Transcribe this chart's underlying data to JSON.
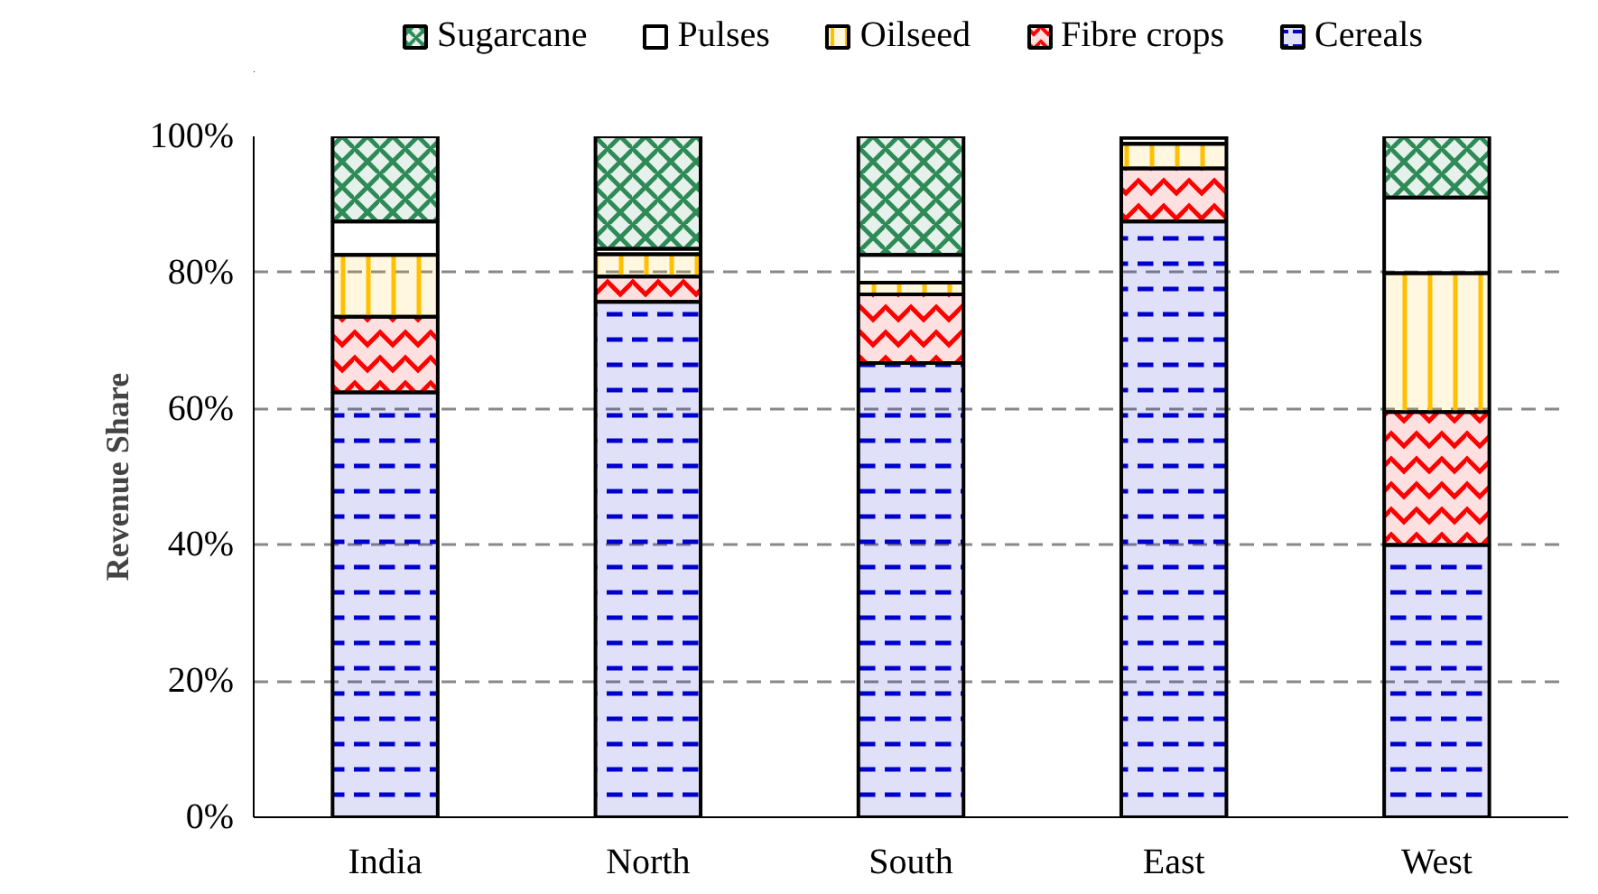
{
  "chart_data": {
    "type": "bar",
    "stacked": true,
    "ylabel": "Revenue Share",
    "categories": [
      "India",
      "North",
      "South",
      "East",
      "West"
    ],
    "series": [
      {
        "name": "Cereals",
        "color": "#0000cc",
        "values": [
          62.4,
          75.7,
          66.7,
          87.5,
          40.0
        ]
      },
      {
        "name": "Fibre crops",
        "color": "#ff0000",
        "values": [
          11.1,
          3.7,
          10.1,
          7.8,
          19.5
        ]
      },
      {
        "name": "Oilseed",
        "color": "#ffc000",
        "values": [
          9.1,
          3.3,
          1.7,
          3.6,
          20.4
        ]
      },
      {
        "name": "Pulses",
        "color": "#ffffff",
        "values": [
          4.9,
          0.8,
          4.1,
          0.9,
          11.1
        ]
      },
      {
        "name": "Sugarcane",
        "color": "#2e8b57",
        "values": [
          12.5,
          16.5,
          17.4,
          0.2,
          9.0
        ]
      }
    ],
    "ylim": [
      0,
      100
    ],
    "yticks": [
      {
        "value": 0,
        "label": "0%"
      },
      {
        "value": 20,
        "label": "20%"
      },
      {
        "value": 40,
        "label": "40%"
      },
      {
        "value": 60,
        "label": "60%"
      },
      {
        "value": 80,
        "label": "80%"
      },
      {
        "value": 100,
        "label": "100%"
      }
    ],
    "grid": "y",
    "legend": "top"
  }
}
